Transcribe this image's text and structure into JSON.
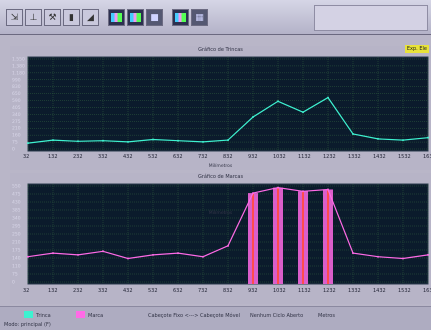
{
  "toolbar": {
    "buttons": [
      {
        "name": "arrow-icon",
        "glyph": "⇲",
        "style": ""
      },
      {
        "name": "pin-tool-icon",
        "glyph": "⊥",
        "style": ""
      },
      {
        "name": "hammer-icon",
        "glyph": "⚒",
        "style": ""
      },
      {
        "name": "block-icon",
        "glyph": "▮",
        "style": ""
      },
      {
        "name": "eraser-icon",
        "glyph": "◢",
        "style": ""
      },
      {
        "name": "chart-thumbnail-1-icon",
        "glyph": "",
        "style": "img"
      },
      {
        "name": "chart-thumbnail-2-icon",
        "glyph": "",
        "style": "img"
      },
      {
        "name": "gray-square-icon",
        "glyph": "■",
        "style": "dark"
      },
      {
        "name": "image-thumbnail-icon",
        "glyph": "",
        "style": "img"
      },
      {
        "name": "color-grid-icon",
        "glyph": "▦",
        "style": "dark"
      }
    ]
  },
  "charts": {
    "top": {
      "title": "Gráfico de Trincas",
      "x_axis_name": "Milímetros",
      "badge": "Exp. Ele",
      "line_color": "#3ef2d0",
      "y_ticks": [
        "1.550",
        "1.380",
        "1.180",
        "990",
        "830",
        "650",
        "590",
        "405",
        "340",
        "275",
        "210",
        "160",
        "75",
        "0"
      ],
      "x_ticks": [
        "32",
        "132",
        "232",
        "332",
        "432",
        "532",
        "632",
        "732",
        "832",
        "932",
        "1032",
        "1132",
        "1232",
        "1332",
        "1432",
        "1532",
        "1632"
      ]
    },
    "bottom": {
      "title": "Gráfico de Marcas",
      "x_axis_name": "Milímetros",
      "line_color": "#ff6ae6",
      "accent_color": "#ff4d4d",
      "y_ticks": [
        "550",
        "475",
        "430",
        "385",
        "340",
        "295",
        "250",
        "210",
        "175",
        "140",
        "110",
        "75",
        "0"
      ],
      "x_ticks": [
        "32",
        "132",
        "232",
        "332",
        "432",
        "532",
        "632",
        "732",
        "832",
        "932",
        "1032",
        "1132",
        "1232",
        "1332",
        "1432",
        "1532",
        "1632"
      ]
    }
  },
  "chart_data": [
    {
      "type": "line",
      "title": "Gráfico de Trincas",
      "xlabel": "Milímetros",
      "x": [
        32,
        132,
        232,
        332,
        432,
        532,
        632,
        732,
        832,
        932,
        1032,
        1132,
        1232,
        1332,
        1432,
        1532,
        1632
      ],
      "values": [
        130,
        180,
        160,
        170,
        150,
        190,
        170,
        150,
        180,
        560,
        820,
        640,
        880,
        280,
        200,
        180,
        220
      ],
      "ylim": [
        0,
        1550
      ],
      "grid": true
    },
    {
      "type": "line",
      "title": "Gráfico de Marcas",
      "xlabel": "Milímetros",
      "x": [
        32,
        132,
        232,
        332,
        432,
        532,
        632,
        732,
        832,
        932,
        1032,
        1132,
        1232,
        1332,
        1432,
        1532,
        1632
      ],
      "values": [
        150,
        170,
        160,
        180,
        140,
        160,
        170,
        150,
        210,
        500,
        530,
        510,
        520,
        170,
        150,
        140,
        160
      ],
      "ylim": [
        0,
        550
      ],
      "grid": true
    }
  ],
  "statusbar": {
    "items": [
      {
        "label": "Trinca",
        "color": "#3ef2d0"
      },
      {
        "label": "Marca",
        "color": "#ff6ae6"
      }
    ],
    "mode_text": "Cabeçote Fixo <---> Cabeçote Móvel",
    "cycle_text": "Nenhum Ciclo Aberto",
    "unit_text": "Metros",
    "footer_text": "Modo: principal (F)"
  }
}
